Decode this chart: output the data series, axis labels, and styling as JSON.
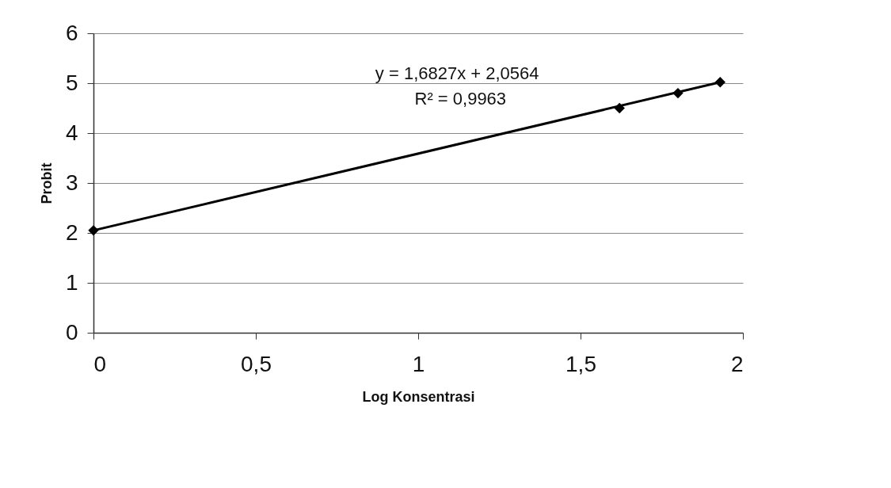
{
  "chart_data": {
    "type": "scatter",
    "xlabel": "Log Konsentrasi",
    "ylabel": "Probit",
    "annotations": [
      "y = 1,6827x + 2,0564",
      "R² = 0,9963"
    ],
    "series": [
      {
        "color": "#000000",
        "x": [
          0,
          1.62,
          1.8,
          1.93
        ],
        "values": [
          2.05,
          4.5,
          4.8,
          5.02
        ],
        "marker": "diamond"
      },
      {
        "type": "line",
        "color": "#000000",
        "x": [
          0,
          1.93
        ],
        "values": [
          2.05,
          5.02
        ],
        "marker": "none"
      }
    ],
    "xlim": [
      0,
      2
    ],
    "xticks": [
      0,
      {
        "value": 0.5,
        "label": "0,5"
      },
      1,
      {
        "value": 1.5,
        "label": "1,5"
      },
      2
    ],
    "ylim": [
      0,
      6
    ],
    "yticks": [
      0,
      1,
      2,
      3,
      4,
      5,
      6
    ],
    "grid": "y"
  }
}
